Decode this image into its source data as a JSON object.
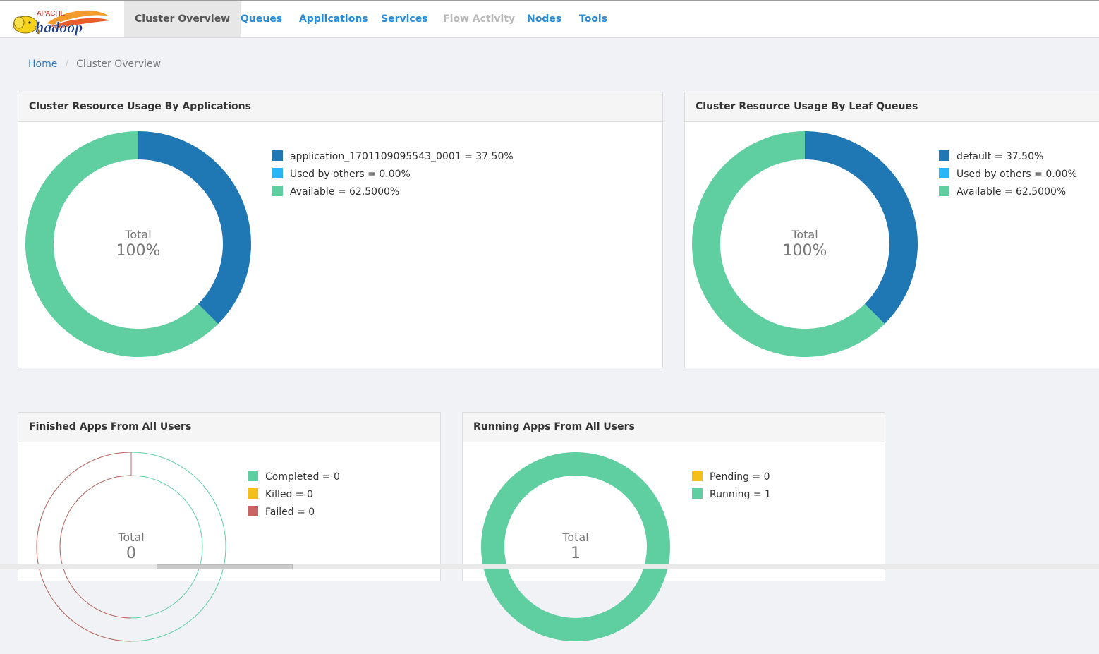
{
  "logo": {
    "apache_text": "APACHE",
    "hadoop_text": "hadoop"
  },
  "nav": {
    "items": [
      {
        "label": "Cluster Overview"
      },
      {
        "label": "Queues"
      },
      {
        "label": "Applications"
      },
      {
        "label": "Services"
      },
      {
        "label": "Flow Activity"
      },
      {
        "label": "Nodes"
      },
      {
        "label": "Tools"
      }
    ]
  },
  "breadcrumb": {
    "home": "Home",
    "current": "Cluster Overview"
  },
  "colors": {
    "dark_blue": "#1f77b4",
    "light_blue": "#29b6f6",
    "green": "#5fcfa1",
    "yellow": "#f5bf1a",
    "red": "#c96464",
    "link": "#337ab7",
    "nav_link": "#2a8bd5"
  },
  "panels": {
    "apps_usage": {
      "title": "Cluster Resource Usage By Applications",
      "center_label": "Total",
      "center_value": "100%",
      "legend": [
        {
          "text": "application_1701109095543_0001 = 37.50%",
          "color": "#1f77b4"
        },
        {
          "text": "Used by others = 0.00%",
          "color": "#29b6f6"
        },
        {
          "text": "Available = 62.5000%",
          "color": "#5fcfa1"
        }
      ]
    },
    "queue_usage": {
      "title": "Cluster Resource Usage By Leaf Queues",
      "center_label": "Total",
      "center_value": "100%",
      "legend": [
        {
          "text": "default = 37.50%",
          "color": "#1f77b4"
        },
        {
          "text": "Used by others = 0.00%",
          "color": "#29b6f6"
        },
        {
          "text": "Available = 62.5000%",
          "color": "#5fcfa1"
        }
      ]
    },
    "finished_apps": {
      "title": "Finished Apps From All Users",
      "center_label": "Total",
      "center_value": "0",
      "legend": [
        {
          "text": "Completed = 0",
          "color": "#5fcfa1"
        },
        {
          "text": "Killed = 0",
          "color": "#f5bf1a"
        },
        {
          "text": "Failed = 0",
          "color": "#c96464"
        }
      ]
    },
    "running_apps": {
      "title": "Running Apps From All Users",
      "center_label": "Total",
      "center_value": "1",
      "legend": [
        {
          "text": "Pending = 0",
          "color": "#f5bf1a"
        },
        {
          "text": "Running = 1",
          "color": "#5fcfa1"
        }
      ]
    }
  },
  "chart_data": [
    {
      "type": "pie",
      "title": "Cluster Resource Usage By Applications",
      "categories": [
        "application_1701109095543_0001",
        "Used by others",
        "Available"
      ],
      "values": [
        37.5,
        0,
        62.5
      ]
    },
    {
      "type": "pie",
      "title": "Cluster Resource Usage By Leaf Queues",
      "categories": [
        "default",
        "Used by others",
        "Available"
      ],
      "values": [
        37.5,
        0,
        62.5
      ]
    },
    {
      "type": "pie",
      "title": "Finished Apps From All Users",
      "categories": [
        "Completed",
        "Killed",
        "Failed"
      ],
      "values": [
        0,
        0,
        0
      ]
    },
    {
      "type": "pie",
      "title": "Running Apps From All Users",
      "categories": [
        "Pending",
        "Running"
      ],
      "values": [
        0,
        1
      ]
    }
  ]
}
